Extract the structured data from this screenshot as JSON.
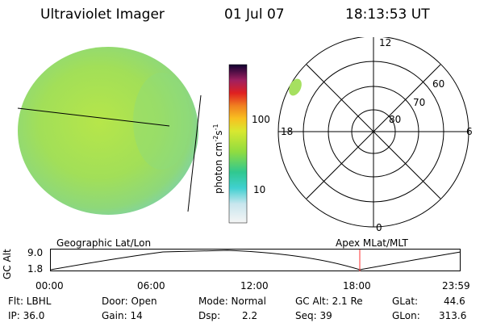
{
  "header": {
    "title": "Ultraviolet Imager",
    "date": "01 Jul 07",
    "time": "18:13:53 UT"
  },
  "colorbar": {
    "unit": "photon cm",
    "unit_sup1": "-2",
    "unit_s": "s",
    "unit_sup2": "-1",
    "tick_100": "100",
    "tick_10": "10"
  },
  "polar": {
    "label_12": "12",
    "label_18": "18",
    "label_6": "6",
    "label_0": "0",
    "lat_60": "60",
    "lat_70": "70",
    "lat_80": "80"
  },
  "altitude_plot": {
    "left_title": "Geographic Lat/Lon",
    "right_title": "Apex  MLat/MLT",
    "ylabel": "GC Alt",
    "ytick_top": "9.0",
    "ytick_bottom": "1.8",
    "xticks": [
      "00:00",
      "06:00",
      "12:00",
      "18:00",
      "23:59"
    ],
    "marker_color": "#ff3030"
  },
  "info": {
    "flt_label": "Flt: LBHL",
    "door_label": "Door: Open",
    "mode_label": "Mode: Normal",
    "gcalt_label": "GC Alt: 2.1 Re",
    "glat_label": "GLat:",
    "glat_value": "44.6",
    "ip_label": "IP: 36.0",
    "gain_label": "Gain: 14",
    "dsp_label": "Dsp:",
    "dsp_value": "2.2",
    "seq_label": "Seq: 39",
    "glon_label": "GLon:",
    "glon_value": "313.6"
  },
  "colors": {
    "disk_green": "#a7e15c",
    "disk_edge": "#7fd2a0"
  }
}
